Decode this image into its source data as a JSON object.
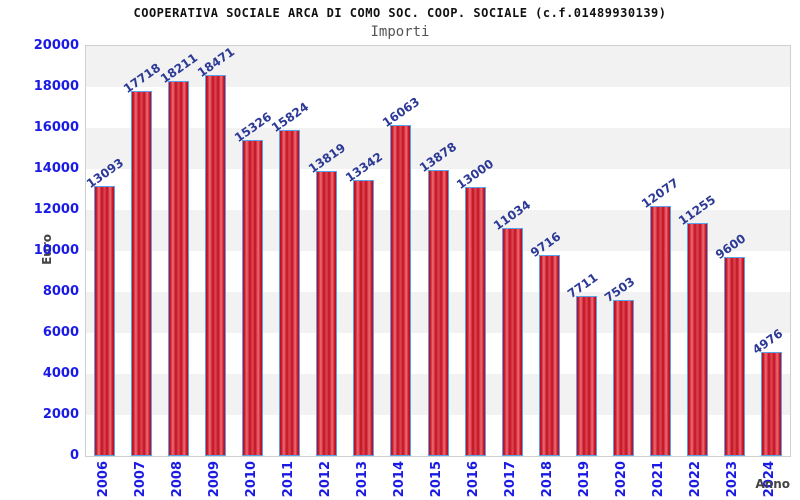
{
  "header": {
    "title": "COOPERATIVA SOCIALE ARCA DI COMO SOC. COOP. SOCIALE (c.f.01489930139)",
    "subtitle": "Importi"
  },
  "chart_data": {
    "type": "bar",
    "title": "COOPERATIVA SOCIALE ARCA DI COMO SOC. COOP. SOCIALE (c.f.01489930139)",
    "subtitle": "Importi",
    "xlabel": "Anno",
    "ylabel": "Euro",
    "categories": [
      "2006",
      "2007",
      "2008",
      "2009",
      "2010",
      "2011",
      "2012",
      "2013",
      "2014",
      "2015",
      "2016",
      "2017",
      "2018",
      "2019",
      "2020",
      "2021",
      "2022",
      "2023",
      "2024"
    ],
    "values": [
      13093,
      17718,
      18211,
      18471,
      15326,
      15824,
      13819,
      13342,
      16063,
      13878,
      13000,
      11034,
      9716,
      7711,
      7503,
      12077,
      11255,
      9600,
      4976
    ],
    "ylim": [
      0,
      20000
    ],
    "ytick_step": 2000,
    "yticks": [
      0,
      2000,
      4000,
      6000,
      8000,
      10000,
      12000,
      14000,
      16000,
      18000,
      20000
    ],
    "grid": "horizontal-alternating-bands",
    "legend": "none",
    "bar_value_labels_rotated": true,
    "colors": {
      "bar_fill_dark": "#c11021",
      "bar_fill_light": "#ef6b76",
      "bar_fill_mid": "#e04854",
      "bar_border": "#5ba3e8",
      "axis_tick_label": "#1a1ae6",
      "value_label": "#2c3a96",
      "band_gray": "#f2f2f2",
      "band_white": "#ffffff",
      "plot_border": "#cfcfcf",
      "title": "#111111",
      "subtitle": "#555555",
      "axis_title": "#444444"
    }
  }
}
